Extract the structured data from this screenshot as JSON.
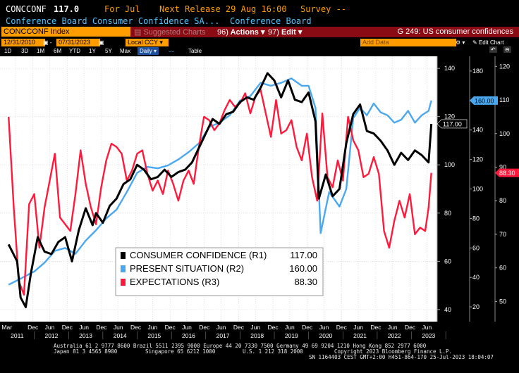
{
  "header": {
    "ticker": "CONCCONF",
    "last": "117.0",
    "period": "For Jul",
    "next_release": "Next Release 29 Aug 16:00",
    "survey": "Survey --",
    "description": "Conference Board Consumer Confidence SA...",
    "source": "Conference Board"
  },
  "toolbar": {
    "security": "CONCCONF Index",
    "suggested_charts": "Suggested Charts",
    "actions_num": "96)",
    "actions_label": "Actions",
    "edit_num": "97)",
    "edit_label": "Edit",
    "page_title": "G 249: US consumer confidences"
  },
  "range": {
    "start": "12/31/2010",
    "end": "07/31/2023",
    "currency": "Local CCY",
    "add_data": "Add Data",
    "edit_chart": "Edit Chart"
  },
  "periods": [
    "1D",
    "3D",
    "1M",
    "6M",
    "YTD",
    "1Y",
    "5Y",
    "Max"
  ],
  "frequency": "Daily",
  "table_label": "Table",
  "axes": {
    "r1_ticks": [
      "140",
      "120",
      "100",
      "80",
      "60",
      "40"
    ],
    "r2_ticks": [
      "180",
      "160",
      "140",
      "120",
      "100",
      "80",
      "60",
      "40",
      "20"
    ],
    "r3_ticks": [
      "120",
      "110",
      "100",
      "90",
      "80",
      "70",
      "60",
      "50"
    ],
    "x_top": [
      "Mar",
      "Dec",
      "Jun",
      "Dec",
      "Jun",
      "Dec",
      "Jun",
      "Dec",
      "Jun",
      "Dec",
      "Jun",
      "Dec",
      "Jun",
      "Dec",
      "Jun",
      "Dec",
      "Jun",
      "Dec",
      "Jun",
      "Dec",
      "Jun",
      "Dec",
      "Jun",
      "Dec",
      "Jun"
    ],
    "x_years": [
      "2011",
      "2012",
      "2013",
      "2014",
      "2015",
      "2016",
      "2017",
      "2018",
      "2019",
      "2020",
      "2021",
      "2022",
      "2023"
    ]
  },
  "legend": [
    {
      "name": "CONSUMER CONFIDENCE (R1)",
      "value": "117.00",
      "color": "#ffffff"
    },
    {
      "name": "PRESENT SITUATION (R2)",
      "value": "160.00",
      "color": "#4aa8f0"
    },
    {
      "name": "EXPECTATIONS (R3)",
      "value": "88.30",
      "color": "#ff1a3c"
    }
  ],
  "value_tags": {
    "r1": "117.00",
    "r2": "160.00",
    "r3": "88.30"
  },
  "footer": {
    "line1": "Australia 61 2 9777 8600 Brazil 5511 2395 9000 Europe 44 20 7330 7500 Germany 49 69 9204 1210 Hong Kong 852 2977 6000",
    "line2a": "Japan 81 3 4565 8900",
    "line2b": "Singapore 65 6212 1000",
    "line2c": "U.S. 1 212 318 2000",
    "line2d": "Copyright 2023 Bloomberg Finance L.P.",
    "line3": "SN 1164403 CEST GMT+2:00 H451-864-170 25-Jul-2023 18:04:07"
  },
  "chart_data": {
    "type": "line",
    "x_range": [
      "2011-03",
      "2023-07"
    ],
    "axes": {
      "R1": {
        "min": 35,
        "max": 145
      },
      "R2": {
        "min": 10,
        "max": 190
      },
      "R3": {
        "min": 44,
        "max": 123
      }
    },
    "grid": true,
    "legend_placement": "bottom-center",
    "series": [
      {
        "name": "CONSUMER CONFIDENCE (R1)",
        "axis": "R1",
        "color": "#000000",
        "x": [
          2011.25,
          2011.5,
          2011.6,
          2011.75,
          2011.9,
          2012.1,
          2012.3,
          2012.5,
          2012.7,
          2012.9,
          2013.1,
          2013.3,
          2013.5,
          2013.7,
          2013.8,
          2014.0,
          2014.2,
          2014.4,
          2014.6,
          2014.8,
          2015.0,
          2015.2,
          2015.4,
          2015.6,
          2015.8,
          2016.0,
          2016.2,
          2016.4,
          2016.6,
          2016.8,
          2017.0,
          2017.2,
          2017.4,
          2017.6,
          2017.8,
          2018.0,
          2018.2,
          2018.4,
          2018.6,
          2018.8,
          2019.0,
          2019.2,
          2019.4,
          2019.6,
          2019.8,
          2020.0,
          2020.2,
          2020.3,
          2020.5,
          2020.7,
          2020.9,
          2021.1,
          2021.3,
          2021.5,
          2021.7,
          2021.9,
          2022.1,
          2022.3,
          2022.5,
          2022.7,
          2022.9,
          2023.1,
          2023.3,
          2023.5,
          2023.58
        ],
        "values": [
          67,
          60,
          45,
          41,
          55,
          70,
          64,
          63,
          68,
          70,
          60,
          73,
          82,
          75,
          80,
          76,
          83,
          86,
          92,
          94,
          100,
          98,
          94,
          95,
          98,
          95,
          97,
          98,
          101,
          107,
          113,
          119,
          117,
          121,
          122,
          126,
          128,
          127,
          132,
          138,
          135,
          128,
          135,
          127,
          126,
          130,
          118,
          86,
          96,
          87,
          90,
          109,
          121,
          125,
          114,
          113,
          110,
          106,
          100,
          105,
          102,
          106,
          104,
          101,
          117
        ]
      },
      {
        "name": "PRESENT SITUATION (R2)",
        "axis": "R2",
        "color": "#4aa8f0",
        "x": [
          2011.25,
          2011.5,
          2011.75,
          2012.0,
          2012.3,
          2012.6,
          2012.9,
          2013.2,
          2013.5,
          2013.8,
          2014.1,
          2014.4,
          2014.7,
          2015.0,
          2015.3,
          2015.6,
          2015.9,
          2016.2,
          2016.5,
          2016.8,
          2017.1,
          2017.4,
          2017.7,
          2018.0,
          2018.3,
          2018.6,
          2018.9,
          2019.2,
          2019.5,
          2019.8,
          2020.0,
          2020.2,
          2020.35,
          2020.6,
          2020.9,
          2021.1,
          2021.3,
          2021.5,
          2021.7,
          2021.9,
          2022.1,
          2022.3,
          2022.5,
          2022.7,
          2022.9,
          2023.1,
          2023.3,
          2023.5,
          2023.58
        ],
        "values": [
          35,
          38,
          41,
          44,
          50,
          58,
          60,
          56,
          65,
          72,
          80,
          86,
          98,
          111,
          115,
          114,
          116,
          120,
          125,
          131,
          142,
          145,
          150,
          160,
          163,
          172,
          170,
          172,
          175,
          170,
          170,
          155,
          70,
          98,
          88,
          100,
          148,
          155,
          150,
          158,
          152,
          150,
          145,
          147,
          153,
          145,
          150,
          153,
          160
        ]
      },
      {
        "name": "EXPECTATIONS (R3)",
        "axis": "R3",
        "color": "#ff1a3c",
        "x": [
          2011.25,
          2011.4,
          2011.55,
          2011.7,
          2011.85,
          2012.0,
          2012.15,
          2012.3,
          2012.45,
          2012.6,
          2012.75,
          2012.9,
          2013.05,
          2013.2,
          2013.35,
          2013.5,
          2013.65,
          2013.8,
          2013.95,
          2014.1,
          2014.25,
          2014.4,
          2014.55,
          2014.7,
          2014.85,
          2015.0,
          2015.15,
          2015.3,
          2015.45,
          2015.6,
          2015.75,
          2015.9,
          2016.05,
          2016.2,
          2016.35,
          2016.5,
          2016.65,
          2016.8,
          2016.95,
          2017.1,
          2017.25,
          2017.4,
          2017.55,
          2017.7,
          2017.85,
          2018.0,
          2018.15,
          2018.3,
          2018.45,
          2018.6,
          2018.75,
          2018.9,
          2019.05,
          2019.2,
          2019.35,
          2019.5,
          2019.65,
          2019.8,
          2019.95,
          2020.1,
          2020.25,
          2020.4,
          2020.55,
          2020.7,
          2020.85,
          2021.0,
          2021.15,
          2021.3,
          2021.45,
          2021.6,
          2021.75,
          2021.9,
          2022.05,
          2022.2,
          2022.35,
          2022.5,
          2022.65,
          2022.8,
          2022.95,
          2023.1,
          2023.25,
          2023.4,
          2023.5,
          2023.58
        ],
        "values": [
          105,
          78,
          56,
          52,
          79,
          82,
          66,
          78,
          86,
          94,
          75,
          73,
          71,
          82,
          95,
          85,
          78,
          73,
          84,
          92,
          97,
          96,
          94,
          86,
          89,
          94,
          95,
          88,
          83,
          86,
          82,
          89,
          85,
          80,
          86,
          89,
          85,
          96,
          105,
          104,
          101,
          103,
          107,
          110,
          108,
          109,
          112,
          106,
          111,
          113,
          106,
          99,
          110,
          100,
          101,
          104,
          96,
          92,
          100,
          87,
          80,
          106,
          87,
          84,
          92,
          86,
          105,
          98,
          95,
          87,
          88,
          93,
          88,
          71,
          66,
          74,
          80,
          75,
          82,
          70,
          72,
          71,
          78,
          88.3
        ]
      }
    ]
  }
}
